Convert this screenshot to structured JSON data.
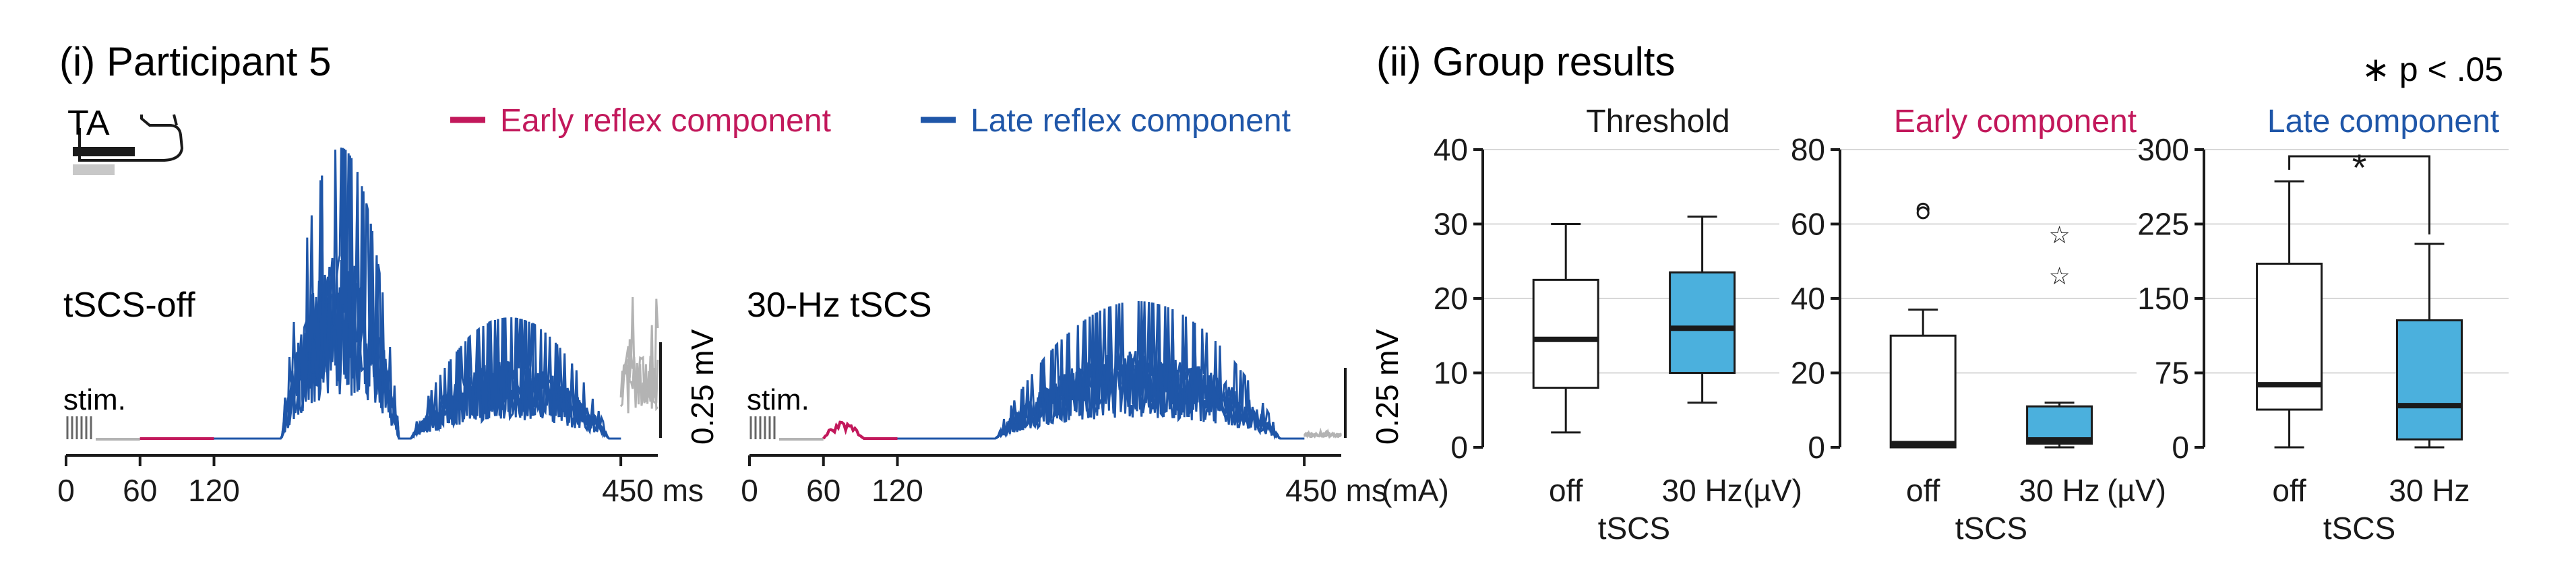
{
  "colors": {
    "early": "#c2185b",
    "late": "#1f56a8",
    "gray": "#b3b3b3",
    "box_fill_30hz": "#4bb0dd",
    "box_fill_off": "#ffffff",
    "text": "#1a1a1a"
  },
  "panel_i": {
    "title": "(i) Participant 5",
    "muscle_label": "TA",
    "legend": {
      "early": "Early reflex component",
      "late": "Late reflex component"
    },
    "trace_left": {
      "label": "tSCS-off",
      "stim_label": "stim.",
      "scale_label": "0.25 mV",
      "ticks": [
        "0",
        "60",
        "120",
        "450 ms"
      ]
    },
    "trace_right": {
      "label": "30-Hz tSCS",
      "stim_label": "stim.",
      "scale_label": "0.25 mV",
      "ticks": [
        "0",
        "60",
        "120",
        "450 ms"
      ]
    }
  },
  "panel_ii": {
    "title": "(ii) Group results",
    "significance_note": "∗ p < .05",
    "significance_star": "*"
  },
  "chart_data": [
    {
      "type": "line",
      "title": "tSCS-off",
      "xlabel": "ms",
      "xlim": [
        0,
        480
      ],
      "xticks": [
        0,
        60,
        120,
        450
      ],
      "scale_bar": "0.25 mV",
      "series": [
        {
          "name": "Early reflex component",
          "segment_ms": [
            60,
            120
          ],
          "peak_mV": 0.0
        },
        {
          "name": "Late reflex component",
          "segment_ms": [
            120,
            450
          ],
          "peak_mV": 0.72,
          "burst_ms": [
            [
              175,
              270,
              0.72
            ],
            [
              280,
              440,
              0.3
            ]
          ]
        }
      ]
    },
    {
      "type": "line",
      "title": "30-Hz tSCS",
      "xlabel": "ms",
      "xlim": [
        0,
        480
      ],
      "xticks": [
        0,
        60,
        120,
        450
      ],
      "scale_bar": "0.25 mV",
      "series": [
        {
          "name": "Early reflex component",
          "segment_ms": [
            60,
            120
          ],
          "peak_mV": 0.05
        },
        {
          "name": "Late reflex component",
          "segment_ms": [
            120,
            450
          ],
          "peak_mV": 0.34,
          "burst_ms": [
            [
              200,
              430,
              0.34
            ]
          ]
        }
      ]
    },
    {
      "type": "box",
      "title": "Threshold",
      "ylabel": "(mA)",
      "ylim": [
        0,
        40
      ],
      "yticks": [
        0,
        10,
        20,
        30,
        40
      ],
      "xlabel": "tSCS",
      "categories": [
        "off",
        "30 Hz"
      ],
      "boxes": [
        {
          "min": 2,
          "q1": 8,
          "median": 14.5,
          "q3": 22.5,
          "max": 30
        },
        {
          "min": 6,
          "q1": 10,
          "median": 16,
          "q3": 23.5,
          "max": 31
        }
      ]
    },
    {
      "type": "box",
      "title": "Early component",
      "ylabel": "(µV)",
      "ylim": [
        0,
        80
      ],
      "yticks": [
        0,
        20,
        40,
        60,
        80
      ],
      "xlabel": "tSCS",
      "categories": [
        "off",
        "30 Hz"
      ],
      "boxes": [
        {
          "min": 0,
          "q1": 0,
          "median": 1,
          "q3": 30,
          "max": 37,
          "outliers": [
            64,
            63
          ]
        },
        {
          "min": 0,
          "q1": 1,
          "median": 2,
          "q3": 11,
          "max": 12,
          "extremes": [
            57,
            46
          ]
        }
      ]
    },
    {
      "type": "box",
      "title": "Late component",
      "ylabel": "(µV)",
      "ylim": [
        0,
        300
      ],
      "yticks": [
        0,
        75,
        150,
        225,
        300
      ],
      "xlabel": "tSCS",
      "categories": [
        "off",
        "30 Hz"
      ],
      "boxes": [
        {
          "min": 0,
          "q1": 38,
          "median": 63,
          "q3": 185,
          "max": 268
        },
        {
          "min": 0,
          "q1": 8,
          "median": 42,
          "q3": 128,
          "max": 205
        }
      ],
      "significance": "*"
    }
  ]
}
